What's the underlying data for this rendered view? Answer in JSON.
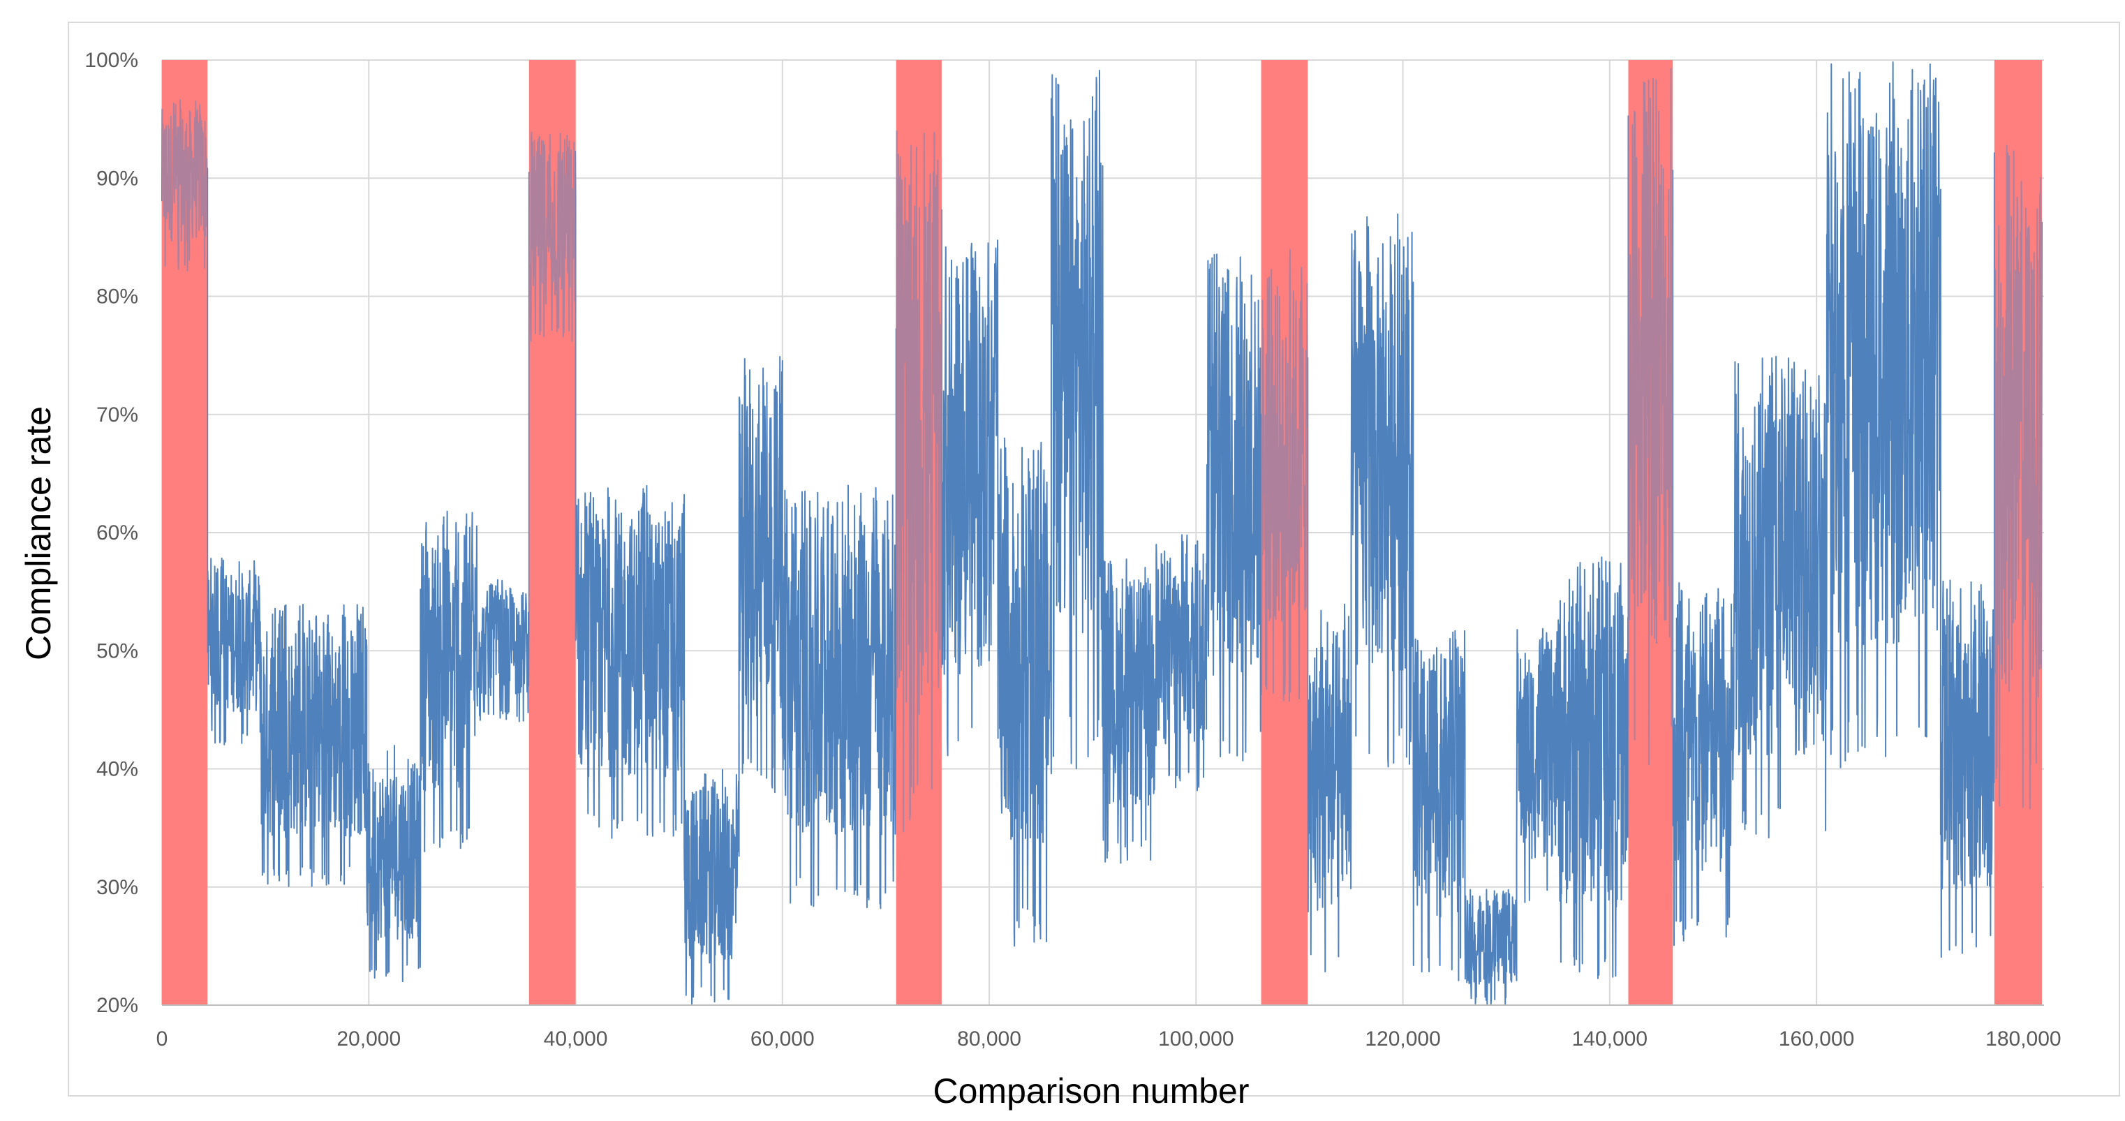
{
  "chart_data": {
    "type": "line",
    "title": "",
    "xlabel": "Comparison number",
    "ylabel": "Compliance rate",
    "xlim": [
      0,
      182000
    ],
    "ylim": [
      20,
      100
    ],
    "x_ticks": [
      {
        "value": 0,
        "label": "0"
      },
      {
        "value": 20000,
        "label": "20,000"
      },
      {
        "value": 40000,
        "label": "40,000"
      },
      {
        "value": 60000,
        "label": "60,000"
      },
      {
        "value": 80000,
        "label": "80,000"
      },
      {
        "value": 100000,
        "label": "100,000"
      },
      {
        "value": 120000,
        "label": "120,000"
      },
      {
        "value": 140000,
        "label": "140,000"
      },
      {
        "value": 160000,
        "label": "160,000"
      },
      {
        "value": 180000,
        "label": "180,000"
      }
    ],
    "y_ticks": [
      {
        "value": 20,
        "label": "20%"
      },
      {
        "value": 30,
        "label": "30%"
      },
      {
        "value": 40,
        "label": "40%"
      },
      {
        "value": 50,
        "label": "50%"
      },
      {
        "value": 60,
        "label": "60%"
      },
      {
        "value": 70,
        "label": "70%"
      },
      {
        "value": 80,
        "label": "80%"
      },
      {
        "value": 90,
        "label": "90%"
      },
      {
        "value": 100,
        "label": "100%"
      }
    ],
    "grid": true,
    "colors": {
      "series": "#4f81bd",
      "highlight": "#ff7f7f",
      "grid": "#d9d9d9",
      "frame": "#d9d9d9"
    },
    "highlight_bands": [
      {
        "x0": 0,
        "x1": 4400
      },
      {
        "x0": 35500,
        "x1": 40000
      },
      {
        "x0": 71000,
        "x1": 75400
      },
      {
        "x0": 106300,
        "x1": 110800
      },
      {
        "x0": 141800,
        "x1": 146100
      },
      {
        "x0": 177200,
        "x1": 181800
      }
    ],
    "series": [
      {
        "name": "Compliance rate",
        "segments": [
          {
            "x0": 0,
            "x1": 4400,
            "lo": 82,
            "hi": 97
          },
          {
            "x0": 4400,
            "x1": 9500,
            "lo": 42,
            "hi": 58
          },
          {
            "x0": 9500,
            "x1": 19800,
            "lo": 30,
            "hi": 54
          },
          {
            "x0": 19800,
            "x1": 25000,
            "lo": 22,
            "hi": 42
          },
          {
            "x0": 25000,
            "x1": 30500,
            "lo": 33,
            "hi": 62
          },
          {
            "x0": 30500,
            "x1": 35500,
            "lo": 44,
            "hi": 56
          },
          {
            "x0": 35500,
            "x1": 40000,
            "lo": 76,
            "hi": 95
          },
          {
            "x0": 40000,
            "x1": 50500,
            "lo": 34,
            "hi": 64
          },
          {
            "x0": 50500,
            "x1": 55800,
            "lo": 20,
            "hi": 40
          },
          {
            "x0": 55800,
            "x1": 60000,
            "lo": 38,
            "hi": 75
          },
          {
            "x0": 60000,
            "x1": 71000,
            "lo": 28,
            "hi": 64
          },
          {
            "x0": 71000,
            "x1": 75400,
            "lo": 34,
            "hi": 94
          },
          {
            "x0": 75400,
            "x1": 81000,
            "lo": 40,
            "hi": 85
          },
          {
            "x0": 81000,
            "x1": 86000,
            "lo": 25,
            "hi": 68
          },
          {
            "x0": 86000,
            "x1": 91000,
            "lo": 40,
            "hi": 100
          },
          {
            "x0": 91000,
            "x1": 96000,
            "lo": 32,
            "hi": 58
          },
          {
            "x0": 96000,
            "x1": 101000,
            "lo": 38,
            "hi": 60
          },
          {
            "x0": 101000,
            "x1": 106300,
            "lo": 40,
            "hi": 84
          },
          {
            "x0": 106300,
            "x1": 110800,
            "lo": 45,
            "hi": 84
          },
          {
            "x0": 110800,
            "x1": 115000,
            "lo": 22,
            "hi": 54
          },
          {
            "x0": 115000,
            "x1": 121000,
            "lo": 40,
            "hi": 87
          },
          {
            "x0": 121000,
            "x1": 126000,
            "lo": 22,
            "hi": 52
          },
          {
            "x0": 126000,
            "x1": 131000,
            "lo": 20,
            "hi": 30
          },
          {
            "x0": 131000,
            "x1": 135000,
            "lo": 28,
            "hi": 52
          },
          {
            "x0": 135000,
            "x1": 141800,
            "lo": 22,
            "hi": 58
          },
          {
            "x0": 141800,
            "x1": 146100,
            "lo": 40,
            "hi": 100
          },
          {
            "x0": 146100,
            "x1": 152000,
            "lo": 25,
            "hi": 56
          },
          {
            "x0": 152000,
            "x1": 161000,
            "lo": 34,
            "hi": 75
          },
          {
            "x0": 161000,
            "x1": 172000,
            "lo": 40,
            "hi": 100
          },
          {
            "x0": 172000,
            "x1": 177200,
            "lo": 24,
            "hi": 56
          },
          {
            "x0": 177200,
            "x1": 181800,
            "lo": 36,
            "hi": 93
          }
        ]
      }
    ]
  }
}
